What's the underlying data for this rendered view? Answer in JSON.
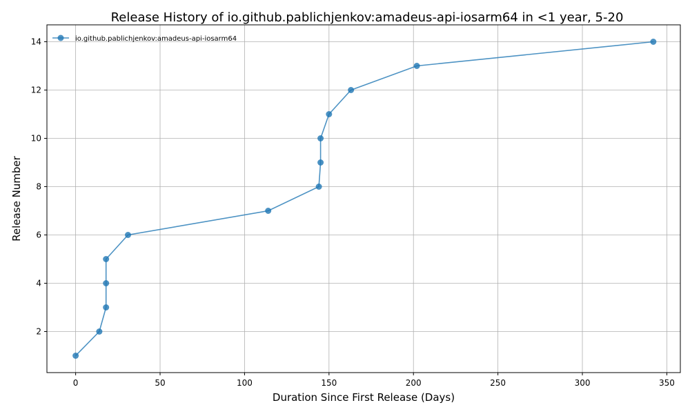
{
  "chart_data": {
    "type": "line",
    "title": "Release History of io.github.pablichjenkov:amadeus-api-iosarm64 in <1 year, 5-20",
    "xlabel": "Duration Since First Release (Days)",
    "ylabel": "Release Number",
    "xlim": [
      -17,
      358
    ],
    "ylim": [
      0.3,
      14.7
    ],
    "xticks": [
      0,
      50,
      100,
      150,
      200,
      250,
      300,
      350
    ],
    "yticks": [
      2,
      4,
      6,
      8,
      10,
      12,
      14
    ],
    "grid": true,
    "legend_position": "top-left",
    "series": [
      {
        "name": "io.github.pablichjenkov:amadeus-api-iosarm64",
        "color": "#1f77b4",
        "x": [
          0,
          14,
          18,
          18,
          18,
          31,
          114,
          144,
          145,
          145,
          150,
          163,
          202,
          342
        ],
        "y": [
          1,
          2,
          3,
          4,
          5,
          6,
          7,
          8,
          9,
          10,
          11,
          12,
          13,
          14
        ]
      }
    ]
  }
}
